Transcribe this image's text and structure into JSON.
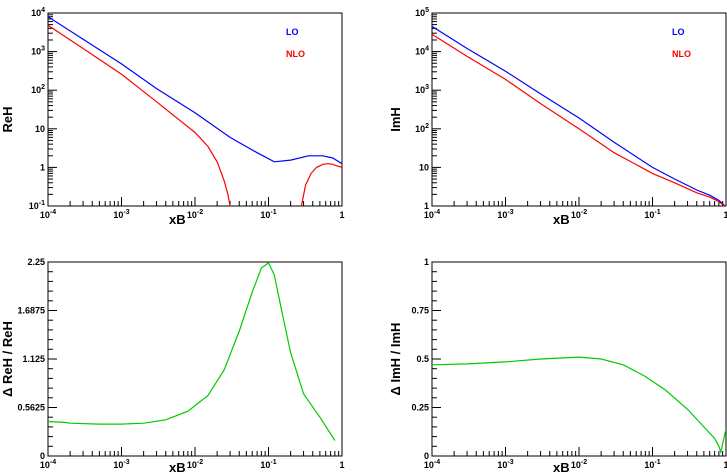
{
  "chart_data": [
    {
      "type": "line",
      "xlabel": "xB",
      "ylabel": "ReH",
      "x_scale": "log",
      "y_scale": "log",
      "xlim": [
        0.0001,
        1
      ],
      "ylim": [
        0.1,
        10000
      ],
      "x_ticks": [
        {
          "value": 0.0001,
          "base": "10",
          "exp": "-4"
        },
        {
          "value": 0.001,
          "base": "10",
          "exp": "-3"
        },
        {
          "value": 0.01,
          "base": "10",
          "exp": "-2"
        },
        {
          "value": 0.1,
          "base": "10",
          "exp": "-1"
        },
        {
          "value": 1,
          "base": "1",
          "exp": ""
        }
      ],
      "y_ticks": [
        {
          "value": 0.1,
          "base": "10",
          "exp": "-1"
        },
        {
          "value": 1,
          "base": "1",
          "exp": ""
        },
        {
          "value": 10,
          "base": "10",
          "exp": ""
        },
        {
          "value": 100,
          "base": "10",
          "exp": "2"
        },
        {
          "value": 1000,
          "base": "10",
          "exp": "3"
        },
        {
          "value": 10000,
          "base": "10",
          "exp": "4"
        }
      ],
      "series": [
        {
          "name": "LO",
          "color": "#0000ff",
          "x": [
            0.0001,
            0.0003,
            0.001,
            0.003,
            0.01,
            0.03,
            0.07,
            0.12,
            0.2,
            0.35,
            0.55,
            0.75,
            1.0
          ],
          "y": [
            8000,
            2100,
            480,
            110,
            26,
            6,
            2.4,
            1.4,
            1.55,
            2.0,
            2.0,
            1.75,
            1.25
          ]
        },
        {
          "name": "NLO",
          "color": "#ff0000",
          "segments": [
            {
              "x": [
                0.0001,
                0.0003,
                0.001,
                0.003,
                0.01,
                0.015,
                0.02,
                0.025,
                0.028,
                0.03
              ],
              "y": [
                4800,
                1200,
                260,
                50,
                8,
                3.5,
                1.4,
                0.45,
                0.2,
                0.1
              ]
            },
            {
              "x": [
                0.28,
                0.32,
                0.38,
                0.45,
                0.55,
                0.65,
                0.75,
                0.85,
                1.0
              ],
              "y": [
                0.1,
                0.35,
                0.7,
                1.0,
                1.2,
                1.25,
                1.2,
                1.1,
                1.0
              ]
            }
          ]
        }
      ]
    },
    {
      "type": "line",
      "xlabel": "xB",
      "ylabel": "ImH",
      "x_scale": "log",
      "y_scale": "log",
      "xlim": [
        0.0001,
        1
      ],
      "ylim": [
        1,
        100000
      ],
      "x_ticks": [
        {
          "value": 0.0001,
          "base": "10",
          "exp": "-4"
        },
        {
          "value": 0.001,
          "base": "10",
          "exp": "-3"
        },
        {
          "value": 0.01,
          "base": "10",
          "exp": "-2"
        },
        {
          "value": 0.1,
          "base": "10",
          "exp": "-1"
        },
        {
          "value": 1,
          "base": "1",
          "exp": ""
        }
      ],
      "y_ticks": [
        {
          "value": 1,
          "base": "1",
          "exp": ""
        },
        {
          "value": 10,
          "base": "10",
          "exp": ""
        },
        {
          "value": 100,
          "base": "10",
          "exp": "2"
        },
        {
          "value": 1000,
          "base": "10",
          "exp": "3"
        },
        {
          "value": 10000,
          "base": "10",
          "exp": "4"
        },
        {
          "value": 100000,
          "base": "10",
          "exp": "5"
        }
      ],
      "series": [
        {
          "name": "LO",
          "color": "#0000ff",
          "x": [
            0.0001,
            0.0003,
            0.001,
            0.003,
            0.01,
            0.03,
            0.1,
            0.2,
            0.4,
            0.6,
            0.8,
            0.95
          ],
          "y": [
            45000,
            12000,
            3100,
            800,
            190,
            45,
            10,
            5,
            2.6,
            1.9,
            1.4,
            1.05
          ]
        },
        {
          "name": "NLO",
          "color": "#ff0000",
          "x": [
            0.0001,
            0.0003,
            0.001,
            0.003,
            0.01,
            0.03,
            0.1,
            0.2,
            0.4,
            0.6,
            0.8,
            0.95
          ],
          "y": [
            28000,
            7500,
            1900,
            450,
            100,
            24,
            7,
            4,
            2.2,
            1.7,
            1.3,
            1.0
          ]
        }
      ]
    },
    {
      "type": "line",
      "xlabel": "xB",
      "ylabel": "Δ ReH / ReH",
      "x_scale": "log",
      "y_scale": "linear",
      "xlim": [
        0.0001,
        1
      ],
      "ylim": [
        0,
        2.25
      ],
      "x_ticks": [
        {
          "value": 0.0001,
          "base": "10",
          "exp": "-4"
        },
        {
          "value": 0.001,
          "base": "10",
          "exp": "-3"
        },
        {
          "value": 0.01,
          "base": "10",
          "exp": "-2"
        },
        {
          "value": 0.1,
          "base": "10",
          "exp": "-1"
        },
        {
          "value": 1,
          "base": "1",
          "exp": ""
        }
      ],
      "y_ticks": [
        {
          "value": 0,
          "label": "0"
        },
        {
          "value": 0.5625,
          "label": "0.5625"
        },
        {
          "value": 1.125,
          "label": "1.125"
        },
        {
          "value": 1.6875,
          "label": "1.6875"
        },
        {
          "value": 2.25,
          "label": "2.25"
        }
      ],
      "series": [
        {
          "color": "#00cc00",
          "x": [
            0.0001,
            0.00017,
            0.0002,
            0.0005,
            0.001,
            0.002,
            0.004,
            0.008,
            0.015,
            0.025,
            0.04,
            0.06,
            0.08,
            0.1,
            0.12,
            0.15,
            0.2,
            0.3,
            0.5,
            0.8
          ],
          "y": [
            0.4,
            0.39,
            0.38,
            0.37,
            0.37,
            0.38,
            0.42,
            0.52,
            0.7,
            1.0,
            1.45,
            1.9,
            2.18,
            2.24,
            2.1,
            1.7,
            1.2,
            0.72,
            0.45,
            0.18
          ]
        }
      ]
    },
    {
      "type": "line",
      "xlabel": "xB",
      "ylabel": "Δ ImH / ImH",
      "x_scale": "log",
      "y_scale": "linear",
      "xlim": [
        0.0001,
        1
      ],
      "ylim": [
        0,
        1
      ],
      "x_ticks": [
        {
          "value": 0.0001,
          "base": "10",
          "exp": "-4"
        },
        {
          "value": 0.001,
          "base": "10",
          "exp": "-3"
        },
        {
          "value": 0.01,
          "base": "10",
          "exp": "-2"
        },
        {
          "value": 0.1,
          "base": "10",
          "exp": "-1"
        },
        {
          "value": 1,
          "base": "1",
          "exp": ""
        }
      ],
      "y_ticks": [
        {
          "value": 0,
          "label": "0"
        },
        {
          "value": 0.25,
          "label": "0.25"
        },
        {
          "value": 0.5,
          "label": "0.5"
        },
        {
          "value": 0.75,
          "label": "0.75"
        },
        {
          "value": 1,
          "label": "1"
        }
      ],
      "series": [
        {
          "color": "#00cc00",
          "x": [
            0.0001,
            0.0003,
            0.001,
            0.003,
            0.01,
            0.02,
            0.04,
            0.08,
            0.15,
            0.3,
            0.5,
            0.7,
            0.8,
            0.85,
            0.9,
            1.0
          ],
          "y": [
            0.47,
            0.475,
            0.485,
            0.5,
            0.51,
            0.5,
            0.47,
            0.41,
            0.34,
            0.24,
            0.15,
            0.09,
            0.05,
            0.02,
            0.06,
            0.14
          ]
        }
      ]
    }
  ]
}
